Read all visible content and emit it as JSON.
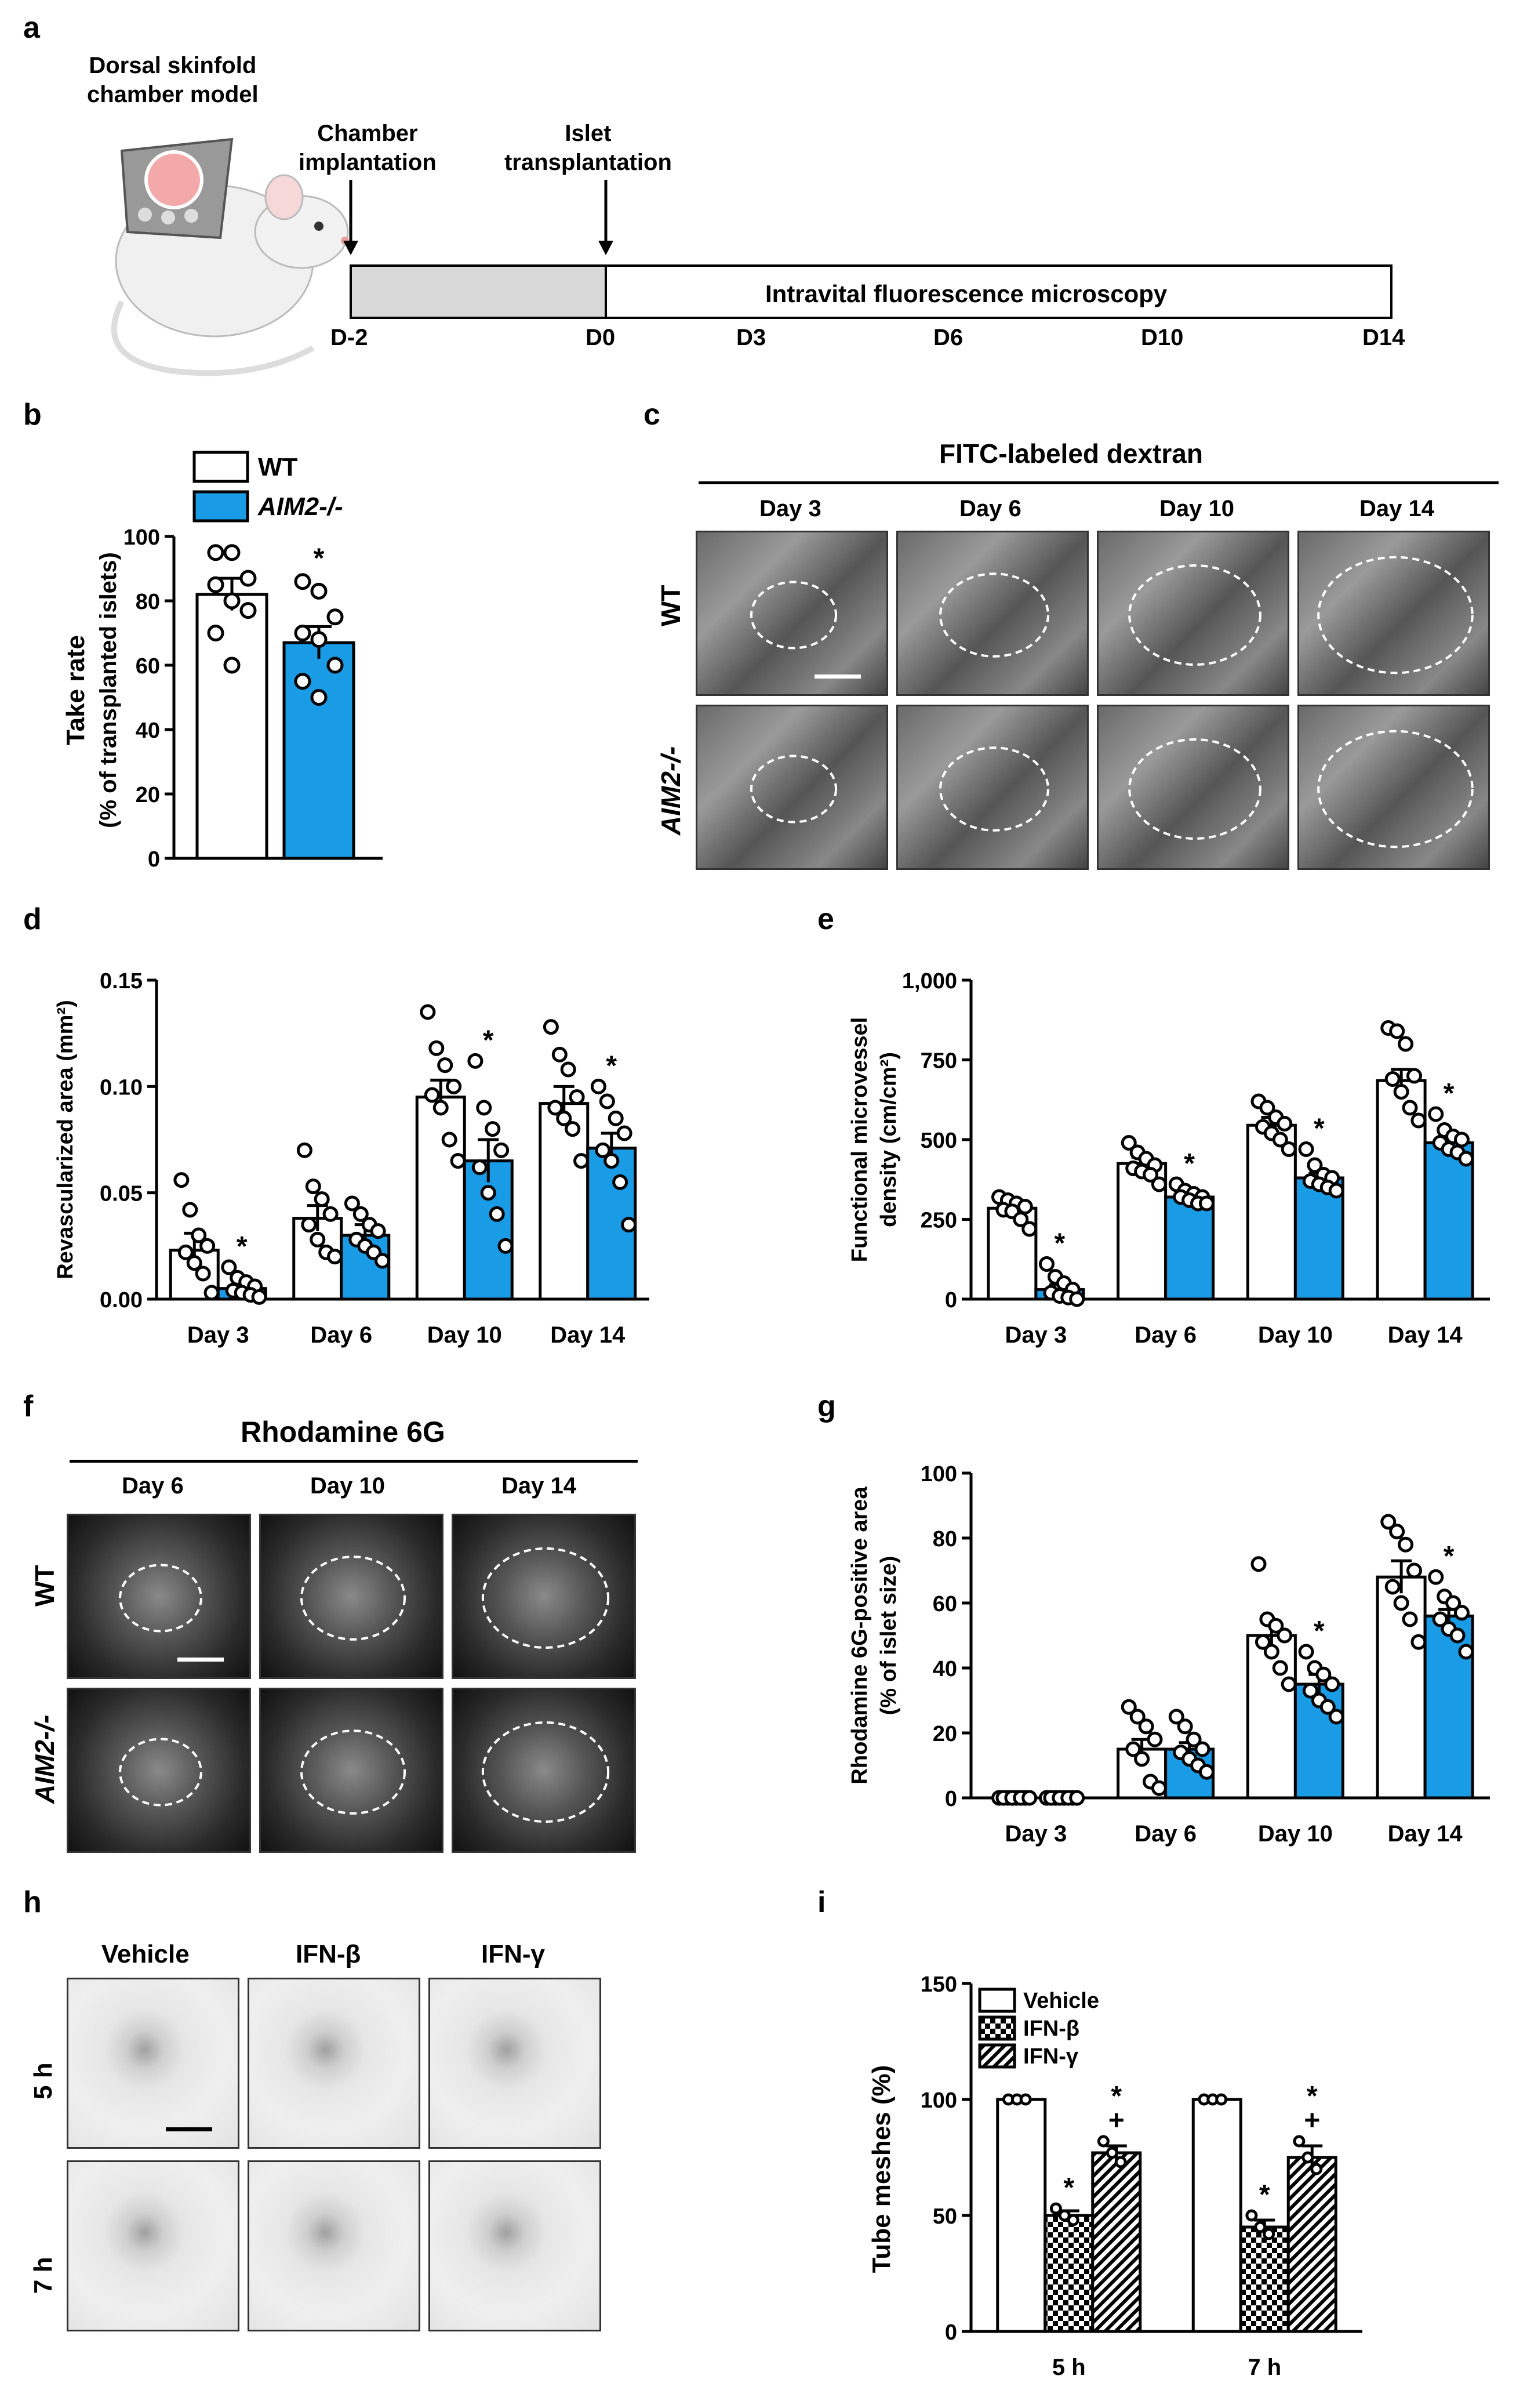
{
  "colors": {
    "wt_fill": "#ffffff",
    "ko_fill": "#1a9be6",
    "axis": "#000000"
  },
  "panels": {
    "a": "a",
    "b": "b",
    "c": "c",
    "d": "d",
    "e": "e",
    "f": "f",
    "g": "g",
    "h": "h",
    "i": "i"
  },
  "panel_a": {
    "model_title_line1": "Dorsal skinfold",
    "model_title_line2": "chamber model",
    "event1_line1": "Chamber",
    "event1_line2": "implantation",
    "event2_line1": "Islet",
    "event2_line2": "transplantation",
    "bar_label": "Intravital fluorescence microscopy",
    "days": [
      "D-2",
      "D0",
      "D3",
      "D6",
      "D10",
      "D14"
    ]
  },
  "panel_c": {
    "title": "FITC-labeled dextran",
    "days": [
      "Day 3",
      "Day 6",
      "Day 10",
      "Day 14"
    ],
    "rows": [
      "WT",
      "AIM2-/-"
    ]
  },
  "panel_f": {
    "title": "Rhodamine 6G",
    "days": [
      "Day 6",
      "Day 10",
      "Day 14"
    ],
    "rows": [
      "WT",
      "AIM2-/-"
    ]
  },
  "panel_h": {
    "cols": [
      "Vehicle",
      "IFN-β",
      "IFN-γ"
    ],
    "rows": [
      "5 h",
      "7 h"
    ]
  },
  "chart_data": [
    {
      "id": "b",
      "type": "bar",
      "ylabel_line1": "Take rate",
      "ylabel_line2": "(% of transplanted islets)",
      "ylim": [
        0,
        100
      ],
      "yticks": [
        "0",
        "20",
        "40",
        "60",
        "80",
        "100"
      ],
      "legend": [
        "WT",
        "AIM2-/-"
      ],
      "series": [
        {
          "name": "WT",
          "value": 82,
          "sem": 5,
          "points": [
            95,
            95,
            87,
            85,
            80,
            77,
            70,
            60
          ]
        },
        {
          "name": "AIM2-/-",
          "value": 67,
          "sem": 5,
          "points": [
            86,
            83,
            75,
            70,
            68,
            60,
            55,
            50
          ],
          "sig": "*"
        }
      ]
    },
    {
      "id": "d",
      "type": "bar",
      "ylabel": "Revascularized area (mm²)",
      "ylim": [
        0,
        0.15
      ],
      "yticks": [
        "0.00",
        "0.05",
        "0.10",
        "0.15"
      ],
      "categories": [
        "Day 3",
        "Day 6",
        "Day 10",
        "Day 14"
      ],
      "series": [
        {
          "name": "WT",
          "values": [
            0.023,
            0.038,
            0.095,
            0.092
          ],
          "sem": [
            0.008,
            0.006,
            0.008,
            0.008
          ],
          "points": [
            [
              0.056,
              0.042,
              0.03,
              0.025,
              0.022,
              0.017,
              0.012,
              0.003
            ],
            [
              0.07,
              0.053,
              0.047,
              0.04,
              0.035,
              0.028,
              0.022,
              0.02
            ],
            [
              0.135,
              0.118,
              0.11,
              0.1,
              0.096,
              0.09,
              0.075,
              0.065
            ],
            [
              0.128,
              0.115,
              0.108,
              0.095,
              0.09,
              0.085,
              0.08,
              0.065
            ]
          ]
        },
        {
          "name": "AIM2-/-",
          "values": [
            0.005,
            0.03,
            0.065,
            0.071
          ],
          "sem": [
            0.002,
            0.005,
            0.01,
            0.007
          ],
          "points": [
            [
              0.015,
              0.01,
              0.008,
              0.006,
              0.004,
              0.003,
              0.002,
              0.001
            ],
            [
              0.045,
              0.04,
              0.035,
              0.032,
              0.028,
              0.025,
              0.022,
              0.018
            ],
            [
              0.112,
              0.09,
              0.08,
              0.07,
              0.062,
              0.05,
              0.04,
              0.025
            ],
            [
              0.1,
              0.093,
              0.085,
              0.078,
              0.07,
              0.065,
              0.055,
              0.035
            ]
          ],
          "sig": [
            "*",
            "",
            "*",
            "*"
          ]
        }
      ]
    },
    {
      "id": "e",
      "type": "bar",
      "ylabel_line1": "Functional microvessel",
      "ylabel_line2": "density (cm/cm²)",
      "ylim": [
        0,
        1000
      ],
      "yticks": [
        "0",
        "250",
        "500",
        "750",
        "1,000"
      ],
      "categories": [
        "Day 3",
        "Day 6",
        "Day 10",
        "Day 14"
      ],
      "series": [
        {
          "name": "WT",
          "values": [
            285,
            425,
            545,
            685
          ],
          "sem": [
            20,
            20,
            25,
            35
          ],
          "points": [
            [
              320,
              310,
              300,
              290,
              280,
              275,
              250,
              220
            ],
            [
              490,
              460,
              440,
              420,
              410,
              400,
              390,
              360
            ],
            [
              620,
              600,
              570,
              550,
              540,
              520,
              500,
              470
            ],
            [
              850,
              840,
              800,
              700,
              690,
              650,
              600,
              560
            ]
          ]
        },
        {
          "name": "AIM2-/-",
          "values": [
            30,
            320,
            380,
            490
          ],
          "sem": [
            15,
            10,
            15,
            20
          ],
          "points": [
            [
              110,
              70,
              50,
              30,
              20,
              10,
              5,
              0
            ],
            [
              360,
              340,
              330,
              320,
              320,
              310,
              300,
              300
            ],
            [
              470,
              420,
              390,
              380,
              370,
              360,
              350,
              340
            ],
            [
              580,
              530,
              510,
              500,
              490,
              470,
              460,
              440
            ]
          ],
          "sig": [
            "*",
            "*",
            "*",
            "*"
          ]
        }
      ]
    },
    {
      "id": "g",
      "type": "bar",
      "ylabel_line1": "Rhodamine 6G-positive area",
      "ylabel_line2": "(% of islet size)",
      "ylim": [
        0,
        100
      ],
      "yticks": [
        "0",
        "20",
        "40",
        "60",
        "80",
        "100"
      ],
      "categories": [
        "Day 3",
        "Day 6",
        "Day 10",
        "Day 14"
      ],
      "series": [
        {
          "name": "WT",
          "values": [
            0,
            15,
            50,
            68
          ],
          "sem": [
            0,
            3,
            4,
            5
          ],
          "points": [
            [
              0,
              0,
              0,
              0,
              0,
              0,
              0,
              0
            ],
            [
              28,
              25,
              22,
              18,
              15,
              12,
              5,
              3
            ],
            [
              72,
              55,
              53,
              50,
              48,
              45,
              40,
              35
            ],
            [
              85,
              82,
              78,
              70,
              65,
              60,
              55,
              48
            ]
          ]
        },
        {
          "name": "AIM2-/-",
          "values": [
            0,
            15,
            35,
            56
          ],
          "sem": [
            0,
            2,
            3,
            2
          ],
          "points": [
            [
              0,
              0,
              0,
              0,
              0,
              0,
              0,
              0
            ],
            [
              25,
              22,
              18,
              15,
              14,
              12,
              10,
              8
            ],
            [
              45,
              40,
              38,
              35,
              33,
              30,
              28,
              25
            ],
            [
              68,
              62,
              60,
              57,
              55,
              52,
              50,
              45
            ]
          ],
          "sig": [
            "",
            "",
            "*",
            "*"
          ]
        }
      ]
    },
    {
      "id": "i",
      "type": "bar",
      "ylabel": "Tube meshes (%)",
      "ylim": [
        0,
        150
      ],
      "yticks": [
        "0",
        "50",
        "100",
        "150"
      ],
      "categories": [
        "5 h",
        "7 h"
      ],
      "legend": [
        "Vehicle",
        "IFN-β",
        "IFN-γ"
      ],
      "series": [
        {
          "name": "Vehicle",
          "values": [
            100,
            100
          ],
          "sem": [
            0,
            0
          ],
          "points": [
            [
              100,
              100,
              100
            ],
            [
              100,
              100,
              100
            ]
          ]
        },
        {
          "name": "IFN-β",
          "values": [
            50,
            45
          ],
          "sem": [
            2,
            3
          ],
          "points": [
            [
              53,
              50,
              48
            ],
            [
              50,
              45,
              42
            ]
          ],
          "sig": [
            "*",
            "*"
          ]
        },
        {
          "name": "IFN-γ",
          "values": [
            77,
            75
          ],
          "sem": [
            3,
            5
          ],
          "points": [
            [
              82,
              77,
              73
            ],
            [
              82,
              75,
              70
            ]
          ],
          "sig": [
            "*+",
            "*+"
          ]
        }
      ]
    }
  ]
}
